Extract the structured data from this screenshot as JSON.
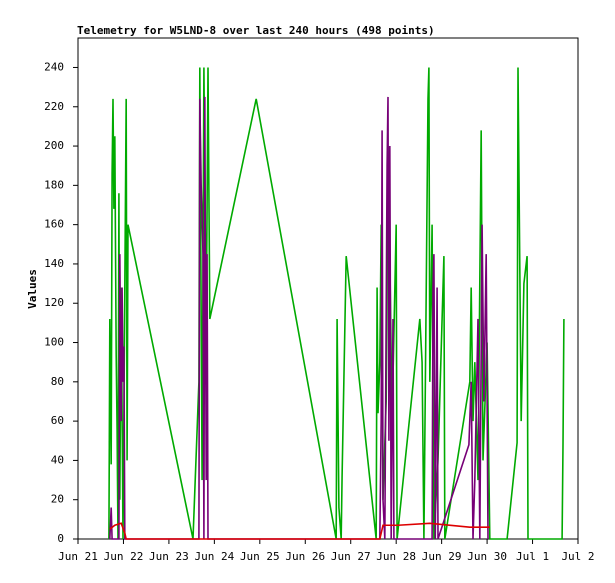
{
  "chart_data": {
    "type": "line",
    "title": "Telemetry for W5LND-8 over last 240 hours (498 points)",
    "ylabel": "Values",
    "xlim": [
      21,
      32
    ],
    "ylim": [
      0,
      255
    ],
    "xticks": [
      {
        "value": 21,
        "label": "Jun 21"
      },
      {
        "value": 22,
        "label": "Jun 22"
      },
      {
        "value": 23,
        "label": "Jun 23"
      },
      {
        "value": 24,
        "label": "Jun 24"
      },
      {
        "value": 25,
        "label": "Jun 25"
      },
      {
        "value": 26,
        "label": "Jun 26"
      },
      {
        "value": 27,
        "label": "Jun 27"
      },
      {
        "value": 28,
        "label": "Jun 28"
      },
      {
        "value": 29,
        "label": "Jun 29"
      },
      {
        "value": 30,
        "label": "Jun 30"
      },
      {
        "value": 31,
        "label": "Jul 1"
      },
      {
        "value": 32,
        "label": "Jul 2"
      }
    ],
    "yticks": [
      0,
      20,
      40,
      60,
      80,
      100,
      120,
      140,
      160,
      180,
      200,
      220,
      240
    ],
    "grid": false,
    "series": [
      {
        "color": "#00aa00",
        "x": [
          21.68,
          21.7,
          21.73,
          21.75,
          21.77,
          21.79,
          21.81,
          21.84,
          21.86,
          21.88,
          21.9,
          21.92,
          21.95,
          21.99,
          22.06,
          22.08,
          22.1,
          23.53,
          23.66,
          23.68,
          23.73,
          23.77,
          23.82,
          23.86,
          23.9,
          24.92,
          26.68,
          26.7,
          26.74,
          26.79,
          26.81,
          26.9,
          27.56,
          27.58,
          27.6,
          27.64,
          27.67,
          27.71,
          27.78,
          27.82,
          27.86,
          27.91,
          28.0,
          28.02,
          28.52,
          28.57,
          28.61,
          28.7,
          28.72,
          28.74,
          28.79,
          28.83,
          28.92,
          29.05,
          29.07,
          29.62,
          29.65,
          29.69,
          29.73,
          29.8,
          29.87,
          29.91,
          30.0,
          30.06,
          30.44,
          30.66,
          30.68,
          30.75,
          30.81,
          30.88,
          30.9,
          31.65,
          31.67,
          31.69
        ],
        "values": [
          0,
          112,
          38,
          186,
          224,
          168,
          205,
          94,
          56,
          0,
          176,
          20,
          128,
          0,
          224,
          40,
          160,
          0,
          80,
          240,
          30,
          240,
          100,
          240,
          112,
          224,
          0,
          112,
          16,
          0,
          32,
          144,
          0,
          128,
          64,
          90,
          160,
          20,
          70,
          200,
          144,
          60,
          160,
          0,
          112,
          90,
          0,
          224,
          240,
          80,
          160,
          0,
          40,
          144,
          0,
          80,
          128,
          60,
          90,
          30,
          208,
          40,
          100,
          0,
          0,
          49,
          240,
          60,
          130,
          144,
          0,
          0,
          48,
          112
        ]
      },
      {
        "color": "#770077",
        "x": [
          21.7,
          21.73,
          21.75,
          21.9,
          21.92,
          21.95,
          21.97,
          21.99,
          22.01,
          22.03,
          22.06,
          23.66,
          23.68,
          23.71,
          23.75,
          23.77,
          23.79,
          23.82,
          23.84,
          23.86,
          27.64,
          27.67,
          27.69,
          27.71,
          27.75,
          27.8,
          27.82,
          27.84,
          27.86,
          27.89,
          27.93,
          27.95,
          28.79,
          28.81,
          28.83,
          28.86,
          28.9,
          28.92,
          29.6,
          29.65,
          29.69,
          29.73,
          29.8,
          29.84,
          29.89,
          29.93,
          29.98,
          30.02
        ],
        "values": [
          0,
          16,
          0,
          0,
          145,
          60,
          128,
          80,
          98,
          0,
          0,
          0,
          224,
          180,
          145,
          0,
          225,
          30,
          145,
          0,
          0,
          60,
          208,
          20,
          0,
          190,
          225,
          50,
          200,
          0,
          112,
          0,
          0,
          128,
          145,
          0,
          128,
          0,
          48,
          80,
          0,
          30,
          112,
          0,
          160,
          70,
          145,
          0
        ]
      },
      {
        "color": "#dd0000",
        "x": [
          21.7,
          21.81,
          21.95,
          22.03,
          22.06,
          27.64,
          27.71,
          28.04,
          28.74,
          29.62,
          30.06
        ],
        "values": [
          5,
          7,
          8,
          3,
          0,
          0,
          7,
          7,
          8,
          6,
          6
        ]
      }
    ]
  }
}
